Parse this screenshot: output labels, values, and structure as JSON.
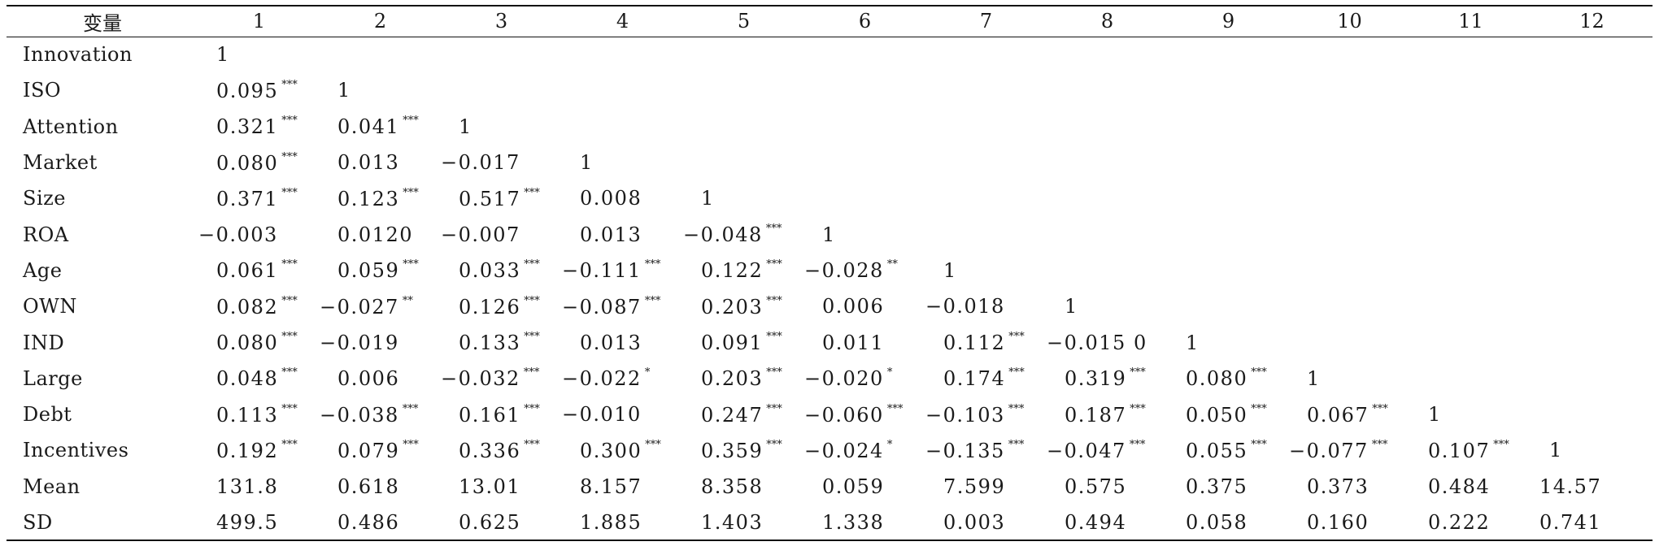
{
  "table": {
    "header_label": "变量",
    "columns": [
      "1",
      "2",
      "3",
      "4",
      "5",
      "6",
      "7",
      "8",
      "9",
      "10",
      "11",
      "12"
    ],
    "rows": [
      {
        "label": "Innovation",
        "cells": [
          [
            "1",
            ""
          ],
          [
            "",
            ""
          ],
          [
            "",
            ""
          ],
          [
            "",
            ""
          ],
          [
            "",
            ""
          ],
          [
            "",
            ""
          ],
          [
            "",
            ""
          ],
          [
            "",
            ""
          ],
          [
            "",
            ""
          ],
          [
            "",
            ""
          ],
          [
            "",
            ""
          ],
          [
            "",
            ""
          ]
        ]
      },
      {
        "label": "ISO",
        "cells": [
          [
            "0.095",
            "***"
          ],
          [
            "1",
            ""
          ],
          [
            "",
            ""
          ],
          [
            "",
            ""
          ],
          [
            "",
            ""
          ],
          [
            "",
            ""
          ],
          [
            "",
            ""
          ],
          [
            "",
            ""
          ],
          [
            "",
            ""
          ],
          [
            "",
            ""
          ],
          [
            "",
            ""
          ],
          [
            "",
            ""
          ]
        ]
      },
      {
        "label": "Attention",
        "cells": [
          [
            "0.321",
            "***"
          ],
          [
            "0.041",
            "***"
          ],
          [
            "1",
            ""
          ],
          [
            "",
            ""
          ],
          [
            "",
            ""
          ],
          [
            "",
            ""
          ],
          [
            "",
            ""
          ],
          [
            "",
            ""
          ],
          [
            "",
            ""
          ],
          [
            "",
            ""
          ],
          [
            "",
            ""
          ],
          [
            "",
            ""
          ]
        ]
      },
      {
        "label": "Market",
        "cells": [
          [
            "0.080",
            "***"
          ],
          [
            "0.013",
            ""
          ],
          [
            "−0.017",
            ""
          ],
          [
            "1",
            ""
          ],
          [
            "",
            ""
          ],
          [
            "",
            ""
          ],
          [
            "",
            ""
          ],
          [
            "",
            ""
          ],
          [
            "",
            ""
          ],
          [
            "",
            ""
          ],
          [
            "",
            ""
          ],
          [
            "",
            ""
          ]
        ]
      },
      {
        "label": "Size",
        "cells": [
          [
            "0.371",
            "***"
          ],
          [
            "0.123",
            "***"
          ],
          [
            "0.517",
            "***"
          ],
          [
            "0.008",
            ""
          ],
          [
            "1",
            ""
          ],
          [
            "",
            ""
          ],
          [
            "",
            ""
          ],
          [
            "",
            ""
          ],
          [
            "",
            ""
          ],
          [
            "",
            ""
          ],
          [
            "",
            ""
          ],
          [
            "",
            ""
          ]
        ]
      },
      {
        "label": "ROA",
        "cells": [
          [
            "−0.003",
            ""
          ],
          [
            "0.0120",
            ""
          ],
          [
            "−0.007",
            ""
          ],
          [
            "0.013",
            ""
          ],
          [
            "−0.048",
            "***"
          ],
          [
            "1",
            ""
          ],
          [
            "",
            ""
          ],
          [
            "",
            ""
          ],
          [
            "",
            ""
          ],
          [
            "",
            ""
          ],
          [
            "",
            ""
          ],
          [
            "",
            ""
          ]
        ]
      },
      {
        "label": "Age",
        "cells": [
          [
            "0.061",
            "***"
          ],
          [
            "0.059",
            "***"
          ],
          [
            "0.033",
            "***"
          ],
          [
            "−0.111",
            "***"
          ],
          [
            "0.122",
            "***"
          ],
          [
            "−0.028",
            "**"
          ],
          [
            "1",
            ""
          ],
          [
            "",
            ""
          ],
          [
            "",
            ""
          ],
          [
            "",
            ""
          ],
          [
            "",
            ""
          ],
          [
            "",
            ""
          ]
        ]
      },
      {
        "label": "OWN",
        "cells": [
          [
            "0.082",
            "***"
          ],
          [
            "−0.027",
            "**"
          ],
          [
            "0.126",
            "***"
          ],
          [
            "−0.087",
            "***"
          ],
          [
            "0.203",
            "***"
          ],
          [
            "0.006",
            ""
          ],
          [
            "−0.018",
            ""
          ],
          [
            "1",
            ""
          ],
          [
            "",
            ""
          ],
          [
            "",
            ""
          ],
          [
            "",
            ""
          ],
          [
            "",
            ""
          ]
        ]
      },
      {
        "label": "IND",
        "cells": [
          [
            "0.080",
            "***"
          ],
          [
            "−0.019",
            ""
          ],
          [
            "0.133",
            "***"
          ],
          [
            "0.013",
            ""
          ],
          [
            "0.091",
            "***"
          ],
          [
            "0.011",
            ""
          ],
          [
            "0.112",
            "***"
          ],
          [
            "−0.015 0",
            ""
          ],
          [
            "1",
            ""
          ],
          [
            "",
            ""
          ],
          [
            "",
            ""
          ],
          [
            "",
            ""
          ]
        ]
      },
      {
        "label": "Large",
        "cells": [
          [
            "0.048",
            "***"
          ],
          [
            "0.006",
            ""
          ],
          [
            "−0.032",
            "***"
          ],
          [
            "−0.022",
            "*"
          ],
          [
            "0.203",
            "***"
          ],
          [
            "−0.020",
            "*"
          ],
          [
            "0.174",
            "***"
          ],
          [
            "0.319",
            "***"
          ],
          [
            "0.080",
            "***"
          ],
          [
            "1",
            ""
          ],
          [
            "",
            ""
          ],
          [
            "",
            ""
          ]
        ]
      },
      {
        "label": "Debt",
        "cells": [
          [
            "0.113",
            "***"
          ],
          [
            "−0.038",
            "***"
          ],
          [
            "0.161",
            "***"
          ],
          [
            "−0.010",
            ""
          ],
          [
            "0.247",
            "***"
          ],
          [
            "−0.060",
            "***"
          ],
          [
            "−0.103",
            "***"
          ],
          [
            "0.187",
            "***"
          ],
          [
            "0.050",
            "***"
          ],
          [
            "0.067",
            "***"
          ],
          [
            "1",
            ""
          ],
          [
            "",
            ""
          ]
        ]
      },
      {
        "label": "Incentives",
        "cells": [
          [
            "0.192",
            "***"
          ],
          [
            "0.079",
            "***"
          ],
          [
            "0.336",
            "***"
          ],
          [
            "0.300",
            "***"
          ],
          [
            "0.359",
            "***"
          ],
          [
            "−0.024",
            "*"
          ],
          [
            "−0.135",
            "***"
          ],
          [
            "−0.047",
            "***"
          ],
          [
            "0.055",
            "***"
          ],
          [
            "−0.077",
            "***"
          ],
          [
            "0.107",
            "***"
          ],
          [
            "1",
            ""
          ]
        ]
      },
      {
        "label": "Mean",
        "cells": [
          [
            "131.8",
            ""
          ],
          [
            "0.618",
            ""
          ],
          [
            "13.01",
            ""
          ],
          [
            "8.157",
            ""
          ],
          [
            "8.358",
            ""
          ],
          [
            "0.059",
            ""
          ],
          [
            "7.599",
            ""
          ],
          [
            "0.575",
            ""
          ],
          [
            "0.375",
            ""
          ],
          [
            "0.373",
            ""
          ],
          [
            "0.484",
            ""
          ],
          [
            "14.57",
            ""
          ]
        ]
      },
      {
        "label": "SD",
        "cells": [
          [
            "499.5",
            ""
          ],
          [
            "0.486",
            ""
          ],
          [
            "0.625",
            ""
          ],
          [
            "1.885",
            ""
          ],
          [
            "1.403",
            ""
          ],
          [
            "1.338",
            ""
          ],
          [
            "0.003",
            ""
          ],
          [
            "0.494",
            ""
          ],
          [
            "0.058",
            ""
          ],
          [
            "0.160",
            ""
          ],
          [
            "0.222",
            ""
          ],
          [
            "0.741",
            ""
          ]
        ]
      }
    ]
  }
}
